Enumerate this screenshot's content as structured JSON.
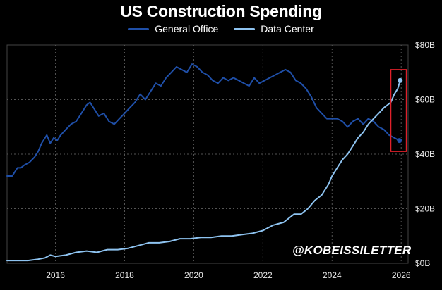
{
  "title": "US Construction Spending",
  "watermark": "@KOBEISSILETTER",
  "colors": {
    "background": "#000000",
    "general_office": "#1f4fa8",
    "data_center": "#8ec3f0",
    "highlight_box": "#e0202a",
    "grid": "#555555"
  },
  "chart_data": {
    "type": "line",
    "title": "US Construction Spending",
    "xlabel": "",
    "ylabel": "",
    "xlim": [
      2014.6,
      2026.2
    ],
    "ylim": [
      0,
      80
    ],
    "x_ticks": [
      2016,
      2018,
      2020,
      2022,
      2024,
      2026
    ],
    "x_tick_labels": [
      "2016",
      "2018",
      "2020",
      "2022",
      "2024",
      "2026"
    ],
    "y_ticks": [
      0,
      20,
      40,
      60,
      80
    ],
    "y_tick_labels": [
      "$0B",
      "$20B",
      "$40B",
      "$60B",
      "$80B"
    ],
    "grid": true,
    "legend": "top-center",
    "annotations": [
      "red box highlighting latest values (2025.7–2026)"
    ],
    "series": [
      {
        "name": "General Office",
        "x": [
          2014.6,
          2014.75,
          2014.9,
          2015.0,
          2015.1,
          2015.25,
          2015.4,
          2015.5,
          2015.6,
          2015.75,
          2015.85,
          2015.95,
          2016.05,
          2016.15,
          2016.3,
          2016.45,
          2016.6,
          2016.75,
          2016.9,
          2017.0,
          2017.1,
          2017.25,
          2017.4,
          2017.55,
          2017.7,
          2017.85,
          2018.0,
          2018.15,
          2018.3,
          2018.45,
          2018.6,
          2018.75,
          2018.9,
          2019.05,
          2019.2,
          2019.35,
          2019.5,
          2019.65,
          2019.8,
          2019.95,
          2020.1,
          2020.25,
          2020.4,
          2020.55,
          2020.7,
          2020.85,
          2021.0,
          2021.15,
          2021.3,
          2021.45,
          2021.6,
          2021.75,
          2021.9,
          2022.05,
          2022.2,
          2022.35,
          2022.5,
          2022.65,
          2022.8,
          2022.95,
          2023.1,
          2023.25,
          2023.4,
          2023.55,
          2023.7,
          2023.85,
          2024.0,
          2024.15,
          2024.3,
          2024.45,
          2024.6,
          2024.75,
          2024.9,
          2025.05,
          2025.2,
          2025.35,
          2025.5,
          2025.65,
          2025.8,
          2025.95
        ],
        "y": [
          32,
          32,
          35,
          35,
          36,
          37,
          39,
          41,
          44,
          47,
          44,
          46,
          45,
          47,
          49,
          51,
          52,
          55,
          58,
          59,
          57,
          54,
          55,
          52,
          51,
          53,
          55,
          57,
          59,
          62,
          60,
          63,
          66,
          65,
          68,
          70,
          72,
          71,
          70,
          73,
          72,
          70,
          69,
          67,
          66,
          68,
          67,
          68,
          67,
          66,
          65,
          68,
          66,
          67,
          68,
          69,
          70,
          71,
          70,
          67,
          66,
          64,
          61,
          57,
          55,
          53,
          53,
          53,
          52,
          50,
          52,
          53,
          51,
          53,
          52,
          50,
          49,
          47,
          46,
          45
        ]
      },
      {
        "name": "Data Center",
        "x": [
          2014.6,
          2014.9,
          2015.2,
          2015.5,
          2015.7,
          2015.85,
          2016.0,
          2016.3,
          2016.6,
          2016.9,
          2017.2,
          2017.5,
          2017.8,
          2018.1,
          2018.4,
          2018.7,
          2019.0,
          2019.3,
          2019.6,
          2019.9,
          2020.2,
          2020.5,
          2020.8,
          2021.1,
          2021.4,
          2021.7,
          2022.0,
          2022.3,
          2022.6,
          2022.9,
          2023.1,
          2023.3,
          2023.5,
          2023.7,
          2023.9,
          2024.0,
          2024.15,
          2024.3,
          2024.45,
          2024.6,
          2024.75,
          2024.9,
          2025.05,
          2025.2,
          2025.35,
          2025.5,
          2025.6,
          2025.7,
          2025.8,
          2025.9,
          2025.97
        ],
        "y": [
          1,
          1,
          1,
          1.5,
          2,
          3,
          2.5,
          3,
          4,
          4.5,
          4,
          5,
          5,
          5.5,
          6.5,
          7.5,
          7.5,
          8,
          9,
          9,
          9.5,
          9.5,
          10,
          10,
          10.5,
          11,
          12,
          14,
          15,
          18,
          18,
          20,
          23,
          25,
          29,
          32,
          35,
          38,
          40,
          43,
          46,
          48,
          51,
          53,
          55,
          57,
          58,
          59,
          62,
          64,
          67
        ]
      }
    ]
  }
}
